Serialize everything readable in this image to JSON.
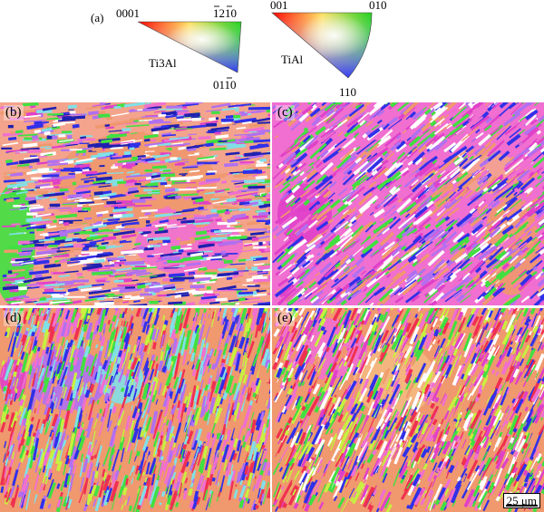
{
  "legend": {
    "panel_label": "(a)",
    "ti3al": {
      "phase": "Ti3Al",
      "corner_left": "0001",
      "corner_right": "1210",
      "corner_bottom": "0110"
    },
    "tial": {
      "phase": "TiAl",
      "corner_left": "001",
      "corner_right": "010",
      "corner_bottom": "110"
    }
  },
  "panels": [
    {
      "label": "(b)"
    },
    {
      "label": "(c)"
    },
    {
      "label": "(d)"
    },
    {
      "label": "(e)"
    }
  ],
  "scale_bar": {
    "text": "25 μm"
  },
  "colors": {
    "orange": "#f0986e",
    "salmon": "#f4a48c",
    "pink": "#f06fd0",
    "magenta": "#e040c8",
    "violet": "#b070f0",
    "blue": "#3030e8",
    "navy": "#2020b0",
    "green": "#40e040",
    "yellow_green": "#c8f040",
    "red": "#f03050",
    "cyan": "#80e0e8"
  }
}
